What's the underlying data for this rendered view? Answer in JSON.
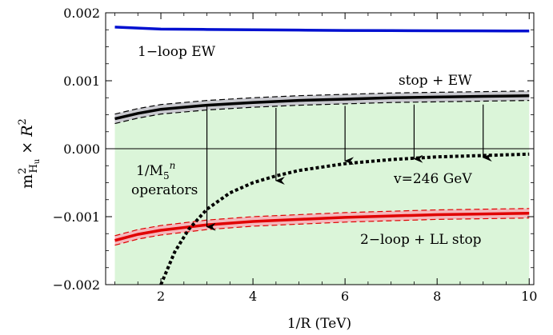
{
  "chart_data": {
    "type": "line",
    "xlabel": "1/R (TeV)",
    "ylabel": {
      "base": "m",
      "sup": "2",
      "sub": "H",
      "subsub": "u",
      "rest": " × R",
      "rest_sup": "2"
    },
    "xlim": [
      0.8,
      10.1
    ],
    "ylim": [
      -0.002,
      0.002
    ],
    "x_ticks": [
      2,
      4,
      6,
      8,
      10
    ],
    "x_tick_labels": [
      "2",
      "4",
      "6",
      "8",
      "10"
    ],
    "y_ticks": [
      -0.002,
      -0.001,
      0.0,
      0.001,
      0.002
    ],
    "y_tick_labels": [
      "−0.002",
      "−0.001",
      "0.000",
      "0.001",
      "0.002"
    ],
    "grid": false,
    "colors": {
      "ew": "#0010d0",
      "stop_ew": "#000000",
      "stop_ew_band": "#c9c9cf",
      "two_loop": "#e00000",
      "two_loop_band": "#f4b8bc",
      "operator_region": "#dbf5d9",
      "vev": "#000000"
    },
    "series": [
      {
        "name": "1−loop EW",
        "style": "solid",
        "x": [
          1,
          2,
          3,
          4,
          5,
          6,
          7,
          8,
          9,
          10
        ],
        "y": [
          0.00179,
          0.00176,
          0.001755,
          0.00175,
          0.001745,
          0.00174,
          0.001738,
          0.001736,
          0.001734,
          0.001732
        ]
      },
      {
        "name": "stop + EW",
        "style": "solid-band",
        "x": [
          1,
          1.5,
          2,
          3,
          4,
          5,
          6,
          7,
          8,
          9,
          10
        ],
        "y": [
          0.00044,
          0.00052,
          0.00058,
          0.00064,
          0.00068,
          0.00071,
          0.00073,
          0.00075,
          0.00076,
          0.00077,
          0.00078
        ],
        "upper": [
          0.00051,
          0.00059,
          0.00065,
          0.00071,
          0.00075,
          0.00078,
          0.0008,
          0.00082,
          0.00083,
          0.00084,
          0.00085
        ],
        "lower": [
          0.00037,
          0.00045,
          0.00051,
          0.00057,
          0.00061,
          0.00064,
          0.00066,
          0.00068,
          0.00069,
          0.0007,
          0.00071
        ]
      },
      {
        "name": "2−loop + LL stop",
        "style": "solid-band",
        "x": [
          1,
          1.5,
          2,
          3,
          4,
          5,
          6,
          7,
          8,
          9,
          10
        ],
        "y": [
          -0.00135,
          -0.00126,
          -0.0012,
          -0.00112,
          -0.00107,
          -0.00104,
          -0.00101,
          -0.00099,
          -0.00097,
          -0.00096,
          -0.00095
        ],
        "upper": [
          -0.00128,
          -0.00119,
          -0.00113,
          -0.00105,
          -0.001,
          -0.00097,
          -0.00094,
          -0.00092,
          -0.0009,
          -0.00089,
          -0.00088
        ],
        "lower": [
          -0.00142,
          -0.00133,
          -0.00127,
          -0.00119,
          -0.00114,
          -0.00111,
          -0.00108,
          -0.00106,
          -0.00104,
          -0.00103,
          -0.00102
        ]
      },
      {
        "name": "v=246 GeV",
        "style": "dotted",
        "x": [
          2.0,
          2.3,
          2.6,
          3.0,
          3.5,
          4.0,
          4.5,
          5.0,
          5.5,
          6.0,
          7.0,
          8.0,
          9.0,
          10.0
        ],
        "y": [
          -0.002,
          -0.00152,
          -0.00119,
          -0.00089,
          -0.00065,
          -0.0005,
          -0.0004,
          -0.00032,
          -0.00027,
          -0.00022,
          -0.00016,
          -0.00012,
          -0.0001,
          -8e-05
        ]
      }
    ],
    "shaded_region": {
      "label_line1": "1/M",
      "label_sub": "5",
      "label_sup": "n",
      "label_line2": "operators",
      "x": [
        1,
        1.5,
        2,
        3,
        4,
        5,
        6,
        7,
        8,
        9,
        10
      ],
      "upper": [
        0.00037,
        0.00045,
        0.00051,
        0.00057,
        0.00061,
        0.00064,
        0.00066,
        0.00068,
        0.00069,
        0.0007,
        0.00071
      ],
      "lower_x": [
        1,
        2.58,
        10
      ],
      "lower_y": [
        -0.002,
        -0.002,
        -0.002
      ]
    },
    "arrows": [
      {
        "x": 3.0,
        "y_from": 0.00063,
        "y_to": -0.00115
      },
      {
        "x": 4.5,
        "y_from": 0.0006,
        "y_to": -0.00047
      },
      {
        "x": 6.0,
        "y_from": 0.00063,
        "y_to": -0.00018
      },
      {
        "x": 7.5,
        "y_from": 0.00065,
        "y_to": -0.00015
      },
      {
        "x": 9.0,
        "y_from": 0.00065,
        "y_to": -0.00013
      }
    ],
    "annotations": [
      {
        "key": "ew",
        "text": "1−loop EW"
      },
      {
        "key": "stop",
        "text": "stop + EW"
      },
      {
        "key": "vev",
        "text": "v=246 GeV"
      },
      {
        "key": "twoloop",
        "text": "2−loop + LL stop"
      }
    ]
  }
}
